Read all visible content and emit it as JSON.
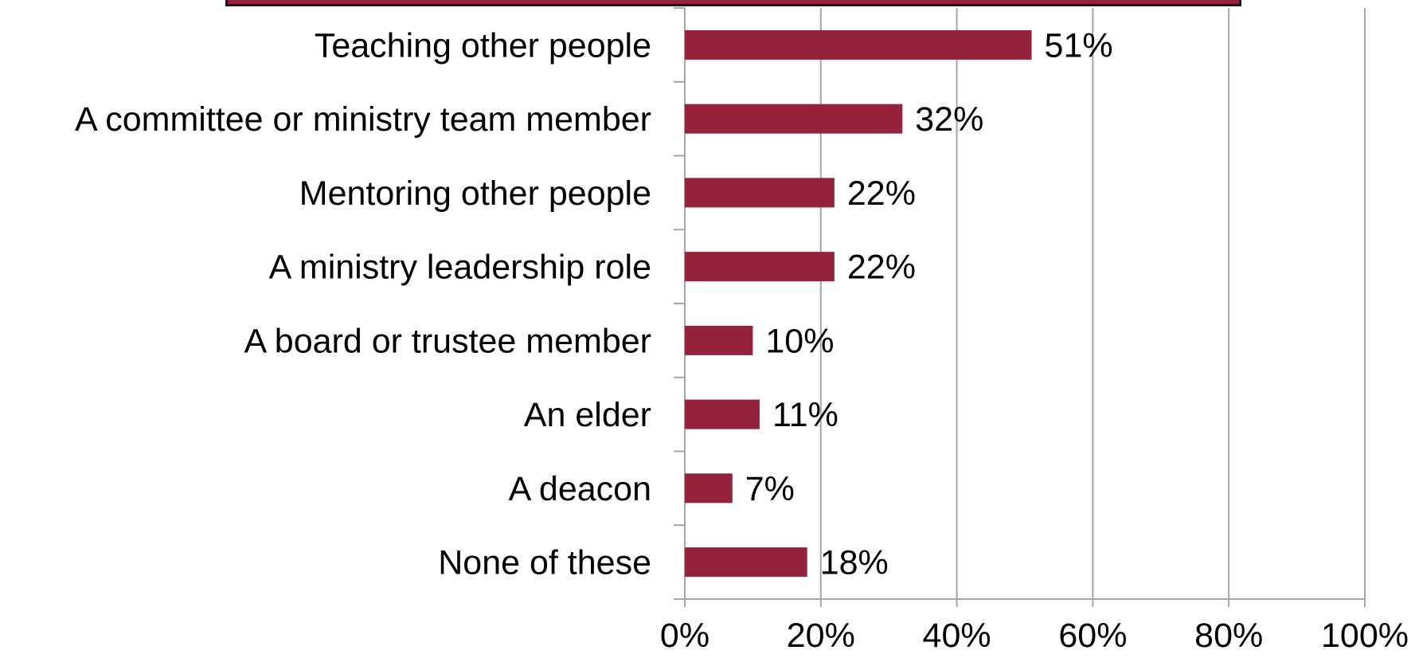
{
  "colors": {
    "bar": "#93223a",
    "grid": "#a6a6a6",
    "banner": "#93223a"
  },
  "chart_data": {
    "type": "bar",
    "orientation": "horizontal",
    "categories": [
      "Teaching other people",
      "A committee or ministry team member",
      "Mentoring other people",
      "A ministry leadership role",
      "A board or trustee member",
      "An elder",
      "A deacon",
      "None of these"
    ],
    "values": [
      51,
      32,
      22,
      22,
      10,
      11,
      7,
      18
    ],
    "value_labels": [
      "51%",
      "32%",
      "22%",
      "22%",
      "10%",
      "11%",
      "7%",
      "18%"
    ],
    "xlim": [
      0,
      100
    ],
    "x_ticks": [
      0,
      20,
      40,
      60,
      80,
      100
    ],
    "x_tick_labels": [
      "0%",
      "20%",
      "40%",
      "60%",
      "80%",
      "100%"
    ],
    "grid": "vertical"
  }
}
